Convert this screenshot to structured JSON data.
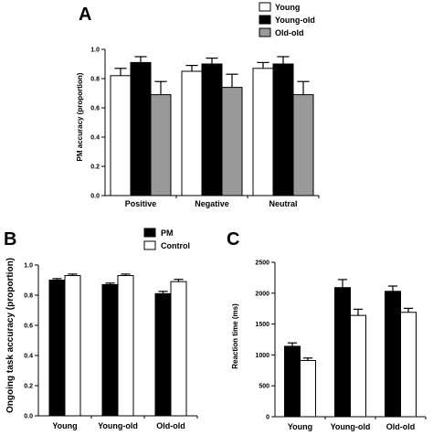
{
  "chart_data": [
    {
      "panel_label": "A",
      "type": "bar",
      "categories": [
        "Positive",
        "Negative",
        "Neutral"
      ],
      "series": [
        {
          "name": "Young",
          "color": "#ffffff",
          "values": [
            0.82,
            0.85,
            0.87
          ],
          "errors": [
            0.05,
            0.04,
            0.04
          ]
        },
        {
          "name": "Young-old",
          "color": "#000000",
          "values": [
            0.91,
            0.9,
            0.9
          ],
          "errors": [
            0.04,
            0.04,
            0.05
          ]
        },
        {
          "name": "Old-old",
          "color": "#999999",
          "values": [
            0.69,
            0.74,
            0.69
          ],
          "errors": [
            0.09,
            0.09,
            0.09
          ]
        }
      ],
      "ylabel": "PM accuracy (proportion)",
      "ylim": [
        0,
        1.0
      ],
      "yticks": [
        "0.0",
        "0.2",
        "0.4",
        "0.6",
        "0.8",
        "1.0"
      ],
      "legend": "top-right"
    },
    {
      "panel_label": "B",
      "type": "bar",
      "categories": [
        "Young",
        "Young-old",
        "Old-old"
      ],
      "series": [
        {
          "name": "PM",
          "color": "#000000",
          "values": [
            0.9,
            0.87,
            0.81
          ],
          "errors": [
            0.01,
            0.01,
            0.015
          ]
        },
        {
          "name": "Control",
          "color": "#ffffff",
          "values": [
            0.93,
            0.93,
            0.89
          ],
          "errors": [
            0.01,
            0.01,
            0.015
          ]
        }
      ],
      "ylabel": "Ongoing task accuracy (proportion)",
      "ylim": [
        0,
        1.0
      ],
      "yticks": [
        "0.0",
        "0.2",
        "0.4",
        "0.6",
        "0.8",
        "1.0"
      ],
      "legend": "top-right"
    },
    {
      "panel_label": "C",
      "type": "bar",
      "categories": [
        "Young",
        "Young-old",
        "Old-old"
      ],
      "series": [
        {
          "name": "PM",
          "color": "#000000",
          "values": [
            1140,
            2090,
            2030
          ],
          "errors": [
            55,
            130,
            85
          ]
        },
        {
          "name": "Control",
          "color": "#ffffff",
          "values": [
            910,
            1640,
            1690
          ],
          "errors": [
            40,
            100,
            65
          ]
        }
      ],
      "ylabel": "Reaction time (ms)",
      "ylim": [
        0,
        2500
      ],
      "yticks": [
        "0",
        "500",
        "1000",
        "1500",
        "2000",
        "2500"
      ]
    }
  ]
}
